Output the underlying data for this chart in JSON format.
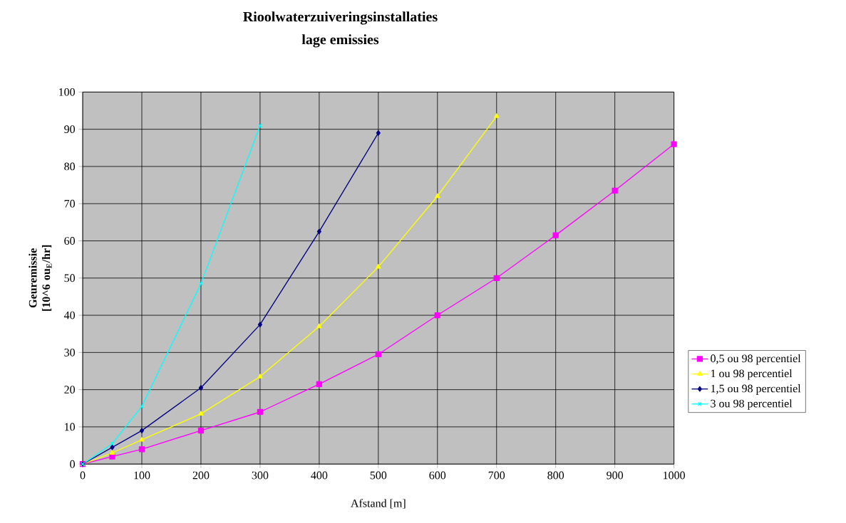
{
  "chart_data": {
    "type": "line",
    "title": "Rioolwaterzuiveringsinstallaties",
    "subtitle": "lage emissies",
    "xlabel": "Afstand [m]",
    "ylabel": "Geuremissie [10^6 ou$_{E}$/hr]",
    "xlim": [
      0,
      1000
    ],
    "xticks": [
      0,
      100,
      200,
      300,
      400,
      500,
      600,
      700,
      800,
      900,
      1000
    ],
    "ylim": [
      0,
      100
    ],
    "yticks": [
      0,
      10,
      20,
      30,
      40,
      50,
      60,
      70,
      80,
      90,
      100
    ],
    "grid": true,
    "legend": "right",
    "line_style": "solid",
    "series": [
      {
        "name": "0,5 ou 98 percentiel",
        "color": "#ff00ff",
        "marker": "square",
        "x": [
          0,
          50,
          100,
          200,
          300,
          400,
          500,
          600,
          700,
          800,
          900,
          1000
        ],
        "values": [
          0,
          2,
          4,
          9,
          14,
          21.5,
          29.5,
          40,
          50,
          61.5,
          73.5,
          86
        ]
      },
      {
        "name": "1 ou 98 percentiel",
        "color": "#ffff00",
        "marker": "triangle",
        "x": [
          0,
          50,
          100,
          200,
          300,
          400,
          500,
          600,
          700
        ],
        "values": [
          0,
          3,
          6.5,
          13.5,
          23.5,
          37,
          53,
          72,
          93.5
        ]
      },
      {
        "name": "1,5 ou 98 percentiel",
        "color": "#000080",
        "marker": "diamond",
        "x": [
          0,
          50,
          100,
          200,
          300,
          400,
          500
        ],
        "values": [
          0,
          4.5,
          9,
          20.5,
          37.5,
          62.5,
          89
        ]
      },
      {
        "name": "3 ou 98 percentiel",
        "color": "#00ffff",
        "marker": "cross",
        "x": [
          0,
          50,
          100,
          200,
          300
        ],
        "values": [
          0,
          5.5,
          15.5,
          48.5,
          91
        ]
      }
    ]
  }
}
